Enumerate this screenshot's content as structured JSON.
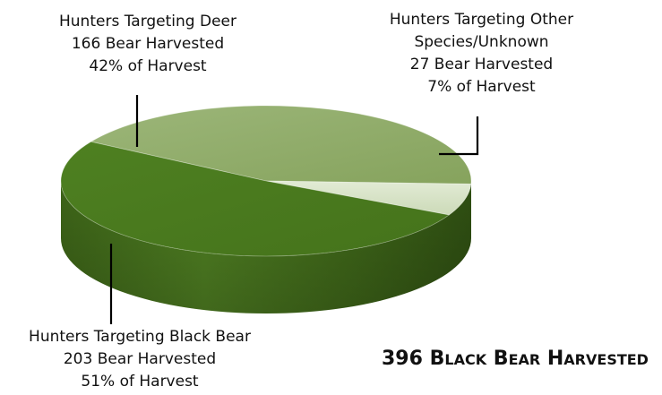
{
  "chart_data": {
    "type": "pie",
    "style": "3d",
    "categories": [
      "Hunters Targeting Deer",
      "Hunters Targeting Other Species/Unknown",
      "Hunters Targeting Black Bear"
    ],
    "values": [
      166,
      27,
      203
    ],
    "percents": [
      42,
      7,
      51
    ],
    "colors": [
      "#8da866",
      "#d6e2c6",
      "#4b7a1f"
    ],
    "total_caption": {
      "number": "396",
      "words": [
        {
          "initial": "B",
          "rest": "LACK"
        },
        {
          "initial": "B",
          "rest": "EAR"
        },
        {
          "initial": "H",
          "rest": "ARVESTED"
        }
      ]
    },
    "labels": [
      {
        "lines": [
          "Hunters Targeting Deer",
          "166 Bear Harvested",
          "42% of Harvest"
        ]
      },
      {
        "lines": [
          "Hunters Targeting Other",
          "Species/Unknown",
          "27 Bear Harvested",
          "7% of Harvest"
        ]
      },
      {
        "lines": [
          "Hunters Targeting Black Bear",
          "203 Bear Harvested",
          "51% of Harvest"
        ]
      }
    ]
  }
}
